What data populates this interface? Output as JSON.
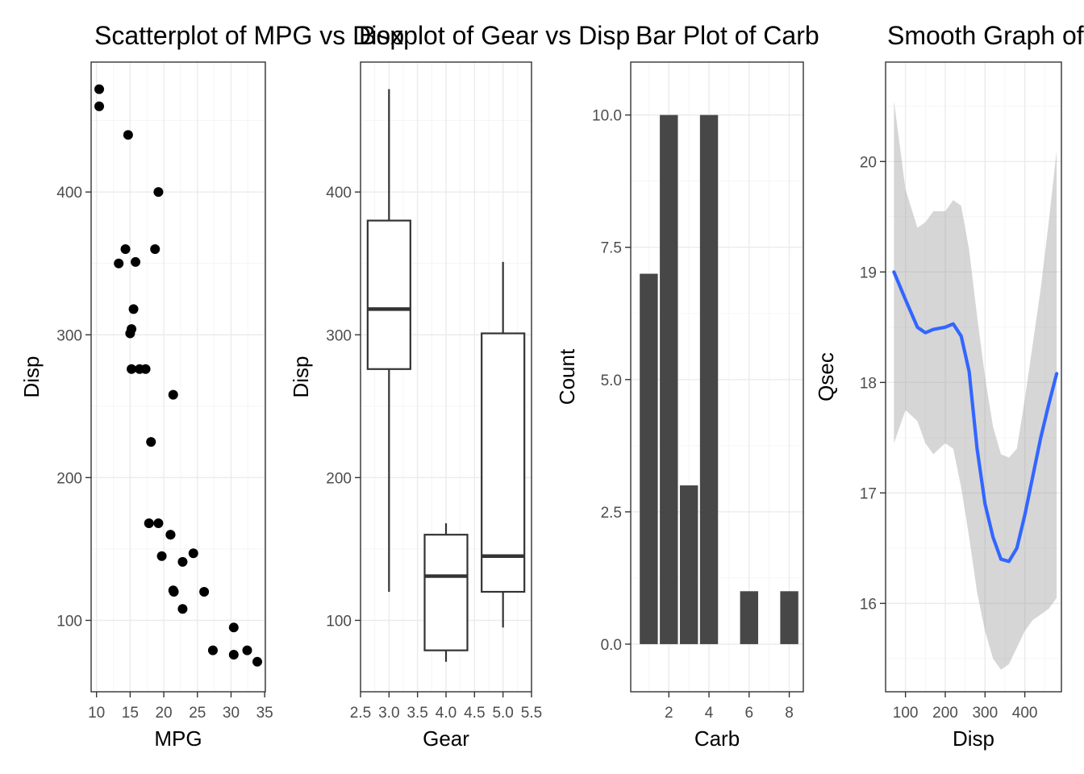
{
  "chart_data": [
    {
      "type": "scatter",
      "title": "Scatterplot of MPG vs Disp",
      "xlabel": "MPG",
      "ylabel": "Disp",
      "xlim": [
        9.2,
        35.1
      ],
      "ylim": [
        50,
        491
      ],
      "xticks": [
        10,
        15,
        20,
        25,
        30,
        35
      ],
      "yticks": [
        100,
        200,
        300,
        400
      ],
      "grid": true,
      "series": [
        {
          "x": [
            10.4,
            10.4,
            14.7,
            19.2,
            14.3,
            18.7,
            15.8,
            13.3,
            15.5,
            15.2,
            15.0,
            15.2,
            16.4,
            17.3,
            21.4,
            18.1,
            17.8,
            19.2,
            21.0,
            21.0,
            24.4,
            19.7,
            22.8,
            21.5,
            21.4,
            26.0,
            22.8,
            30.4,
            27.3,
            32.4,
            30.4,
            33.9
          ],
          "y": [
            472,
            460,
            440,
            400,
            360,
            360,
            351,
            350,
            318,
            304,
            301,
            276,
            276,
            276,
            258,
            225,
            168,
            168,
            160,
            160,
            147,
            145,
            141,
            120,
            121,
            120,
            108,
            95,
            79,
            79,
            76,
            71
          ]
        }
      ]
    },
    {
      "type": "box",
      "title": "Boxplot of Gear vs Disp",
      "xlabel": "Gear",
      "ylabel": "Disp",
      "xlim": [
        2.5,
        5.5
      ],
      "ylim": [
        50,
        491
      ],
      "xticks": [
        "2.5",
        "3.0",
        "3.5",
        "4.0",
        "4.5",
        "5.0",
        "5.5"
      ],
      "yticks": [
        100,
        200,
        300,
        400
      ],
      "grid": true,
      "boxes": [
        {
          "x": 3.0,
          "min": 120,
          "q1": 276,
          "median": 318,
          "q3": 380,
          "max": 472
        },
        {
          "x": 4.0,
          "min": 71,
          "q1": 79,
          "median": 131,
          "q3": 160,
          "max": 168
        },
        {
          "x": 5.0,
          "min": 95,
          "q1": 120,
          "median": 145,
          "q3": 301,
          "max": 351
        }
      ]
    },
    {
      "type": "bar",
      "title": "Bar Plot of Carb",
      "xlabel": "Carb",
      "ylabel": "Count",
      "xlim": [
        0.1,
        8.7
      ],
      "ylim": [
        -0.9,
        11
      ],
      "xticks": [
        2,
        4,
        6,
        8
      ],
      "yticks": [
        "0.0",
        "2.5",
        "5.0",
        "7.5",
        "10.0"
      ],
      "grid": true,
      "categories": [
        1,
        2,
        3,
        4,
        6,
        8
      ],
      "values": [
        7,
        10,
        3,
        10,
        1,
        1
      ]
    },
    {
      "type": "line",
      "title": "Smooth Graph of Qsec vs Disp",
      "xlabel": "Disp",
      "ylabel": "Qsec",
      "xlim": [
        50,
        492
      ],
      "ylim": [
        15.2,
        20.9
      ],
      "xticks": [
        100,
        200,
        300,
        400
      ],
      "yticks": [
        16,
        17,
        18,
        19,
        20
      ],
      "grid": true,
      "series": [
        {
          "x": [
            71,
            100,
            130,
            150,
            170,
            200,
            220,
            240,
            260,
            280,
            300,
            320,
            340,
            360,
            380,
            400,
            420,
            440,
            460,
            480
          ],
          "y": [
            19.0,
            18.75,
            18.5,
            18.45,
            18.48,
            18.5,
            18.53,
            18.42,
            18.1,
            17.4,
            16.9,
            16.6,
            16.4,
            16.38,
            16.5,
            16.8,
            17.15,
            17.5,
            17.8,
            18.08
          ],
          "lower": [
            17.45,
            17.75,
            17.65,
            17.45,
            17.35,
            17.45,
            17.4,
            17.05,
            16.6,
            16.1,
            15.75,
            15.5,
            15.4,
            15.45,
            15.6,
            15.75,
            15.85,
            15.9,
            15.95,
            16.05
          ],
          "upper": [
            20.55,
            19.75,
            19.4,
            19.45,
            19.55,
            19.55,
            19.65,
            19.6,
            19.2,
            18.6,
            18.05,
            17.6,
            17.35,
            17.32,
            17.4,
            17.85,
            18.35,
            18.85,
            19.45,
            20.1
          ]
        }
      ]
    }
  ]
}
